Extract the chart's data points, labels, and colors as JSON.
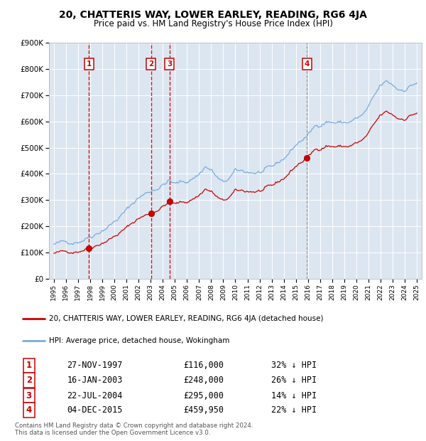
{
  "title": "20, CHATTERIS WAY, LOWER EARLEY, READING, RG6 4JA",
  "subtitle": "Price paid vs. HM Land Registry's House Price Index (HPI)",
  "sale_year_floats": [
    1997.9,
    2003.04,
    2004.55,
    2015.92
  ],
  "sale_prices": [
    116000,
    248000,
    295000,
    459950
  ],
  "sale_labels": [
    "1",
    "2",
    "3",
    "4"
  ],
  "sale_vline_colors": [
    "#cc0000",
    "#cc0000",
    "#cc0000",
    "#888888"
  ],
  "legend_entries": [
    "20, CHATTERIS WAY, LOWER EARLEY, READING, RG6 4JA (detached house)",
    "HPI: Average price, detached house, Wokingham"
  ],
  "table_rows": [
    [
      "1",
      "27-NOV-1997",
      "£116,000",
      "32% ↓ HPI"
    ],
    [
      "2",
      "16-JAN-2003",
      "£248,000",
      "26% ↓ HPI"
    ],
    [
      "3",
      "22-JUL-2004",
      "£295,000",
      "14% ↓ HPI"
    ],
    [
      "4",
      "04-DEC-2015",
      "£459,950",
      "22% ↓ HPI"
    ]
  ],
  "footnote": "Contains HM Land Registry data © Crown copyright and database right 2024.\nThis data is licensed under the Open Government Licence v3.0.",
  "price_line_color": "#cc0000",
  "hpi_line_color": "#7aabdb",
  "sale_marker_color": "#cc0000",
  "plot_bg_color": "#dce6f1",
  "ylim": [
    0,
    900000
  ],
  "ytick_vals": [
    0,
    100000,
    200000,
    300000,
    400000,
    500000,
    600000,
    700000,
    800000,
    900000
  ],
  "ytick_labels": [
    "£0",
    "£100K",
    "£200K",
    "£300K",
    "£400K",
    "£500K",
    "£600K",
    "£700K",
    "£800K",
    "£900K"
  ],
  "xlim_start": 1994.6,
  "xlim_end": 2025.4
}
